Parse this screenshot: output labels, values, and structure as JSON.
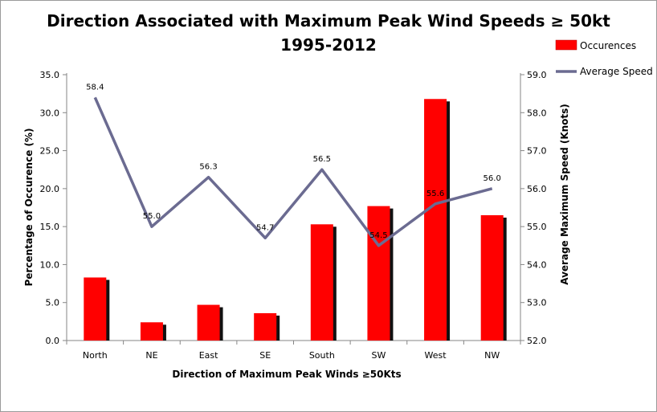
{
  "chart_data": {
    "type": "bar",
    "title": "Direction Associated with Maximum Peak Wind Speeds  ≥ 50kt",
    "subtitle": "1995-2012",
    "xlabel": "Direction of Maximum Peak Winds ≥50Kts",
    "ylabel": "Percentage of Occurence (%)",
    "y2label": "Average Maximum Speed (Knots)",
    "categories": [
      "North",
      "NE",
      "East",
      "SE",
      "South",
      "SW",
      "West",
      "NW"
    ],
    "ylim": [
      0,
      35
    ],
    "y2lim": [
      52,
      59
    ],
    "yticks": [
      "0.0",
      "5.0",
      "10.0",
      "15.0",
      "20.0",
      "25.0",
      "30.0",
      "35.0"
    ],
    "y2ticks": [
      "52.0",
      "53.0",
      "54.0",
      "55.0",
      "56.0",
      "57.0",
      "58.0",
      "59.0"
    ],
    "series": [
      {
        "name": "Occurences",
        "type": "bar",
        "axis": "left",
        "color": "#ff0000",
        "values": [
          8.3,
          2.4,
          4.7,
          3.6,
          15.3,
          17.7,
          31.8,
          16.5
        ]
      },
      {
        "name": "Average Speed",
        "type": "line",
        "axis": "right",
        "color": "#6b6b91",
        "values": [
          58.4,
          55.0,
          56.3,
          54.7,
          56.5,
          54.5,
          55.6,
          56.0
        ],
        "labels": [
          "58.4",
          "55.0",
          "56.3",
          "54.7",
          "56.5",
          "54.5",
          "55.6",
          "56.0"
        ]
      }
    ],
    "grid": false,
    "legend": "top-right"
  }
}
